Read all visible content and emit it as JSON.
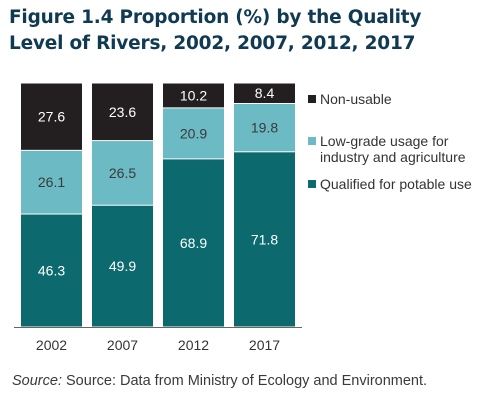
{
  "title": "Figure 1.4 Proportion (%) by the Quality Level of Rivers, 2002, 2007, 2012, 2017",
  "source_label": "Source:",
  "source_text": "Source: Data from Ministry of Ecology and Environment.",
  "chart_data": {
    "type": "bar",
    "stacked": true,
    "categories": [
      "2002",
      "2007",
      "2012",
      "2017"
    ],
    "series": [
      {
        "name": "Qualified for potable use",
        "values": [
          46.3,
          49.9,
          68.9,
          71.8
        ],
        "color": "#0c6a6e",
        "label_color": "#ffffff"
      },
      {
        "name": "Low-grade usage for industry and agriculture",
        "values": [
          26.1,
          26.5,
          20.9,
          19.8
        ],
        "color": "#6bbac4",
        "label_color": "#3a3a3a"
      },
      {
        "name": "Non-usable",
        "values": [
          27.6,
          23.6,
          10.2,
          8.4
        ],
        "color": "#231f20",
        "label_color": "#ffffff"
      }
    ],
    "legend_order": [
      "Non-usable",
      "Low-grade usage for industry and agriculture",
      "Qualified for potable use"
    ],
    "legend_position": "right",
    "ylim": [
      0,
      100
    ],
    "grid": false
  }
}
